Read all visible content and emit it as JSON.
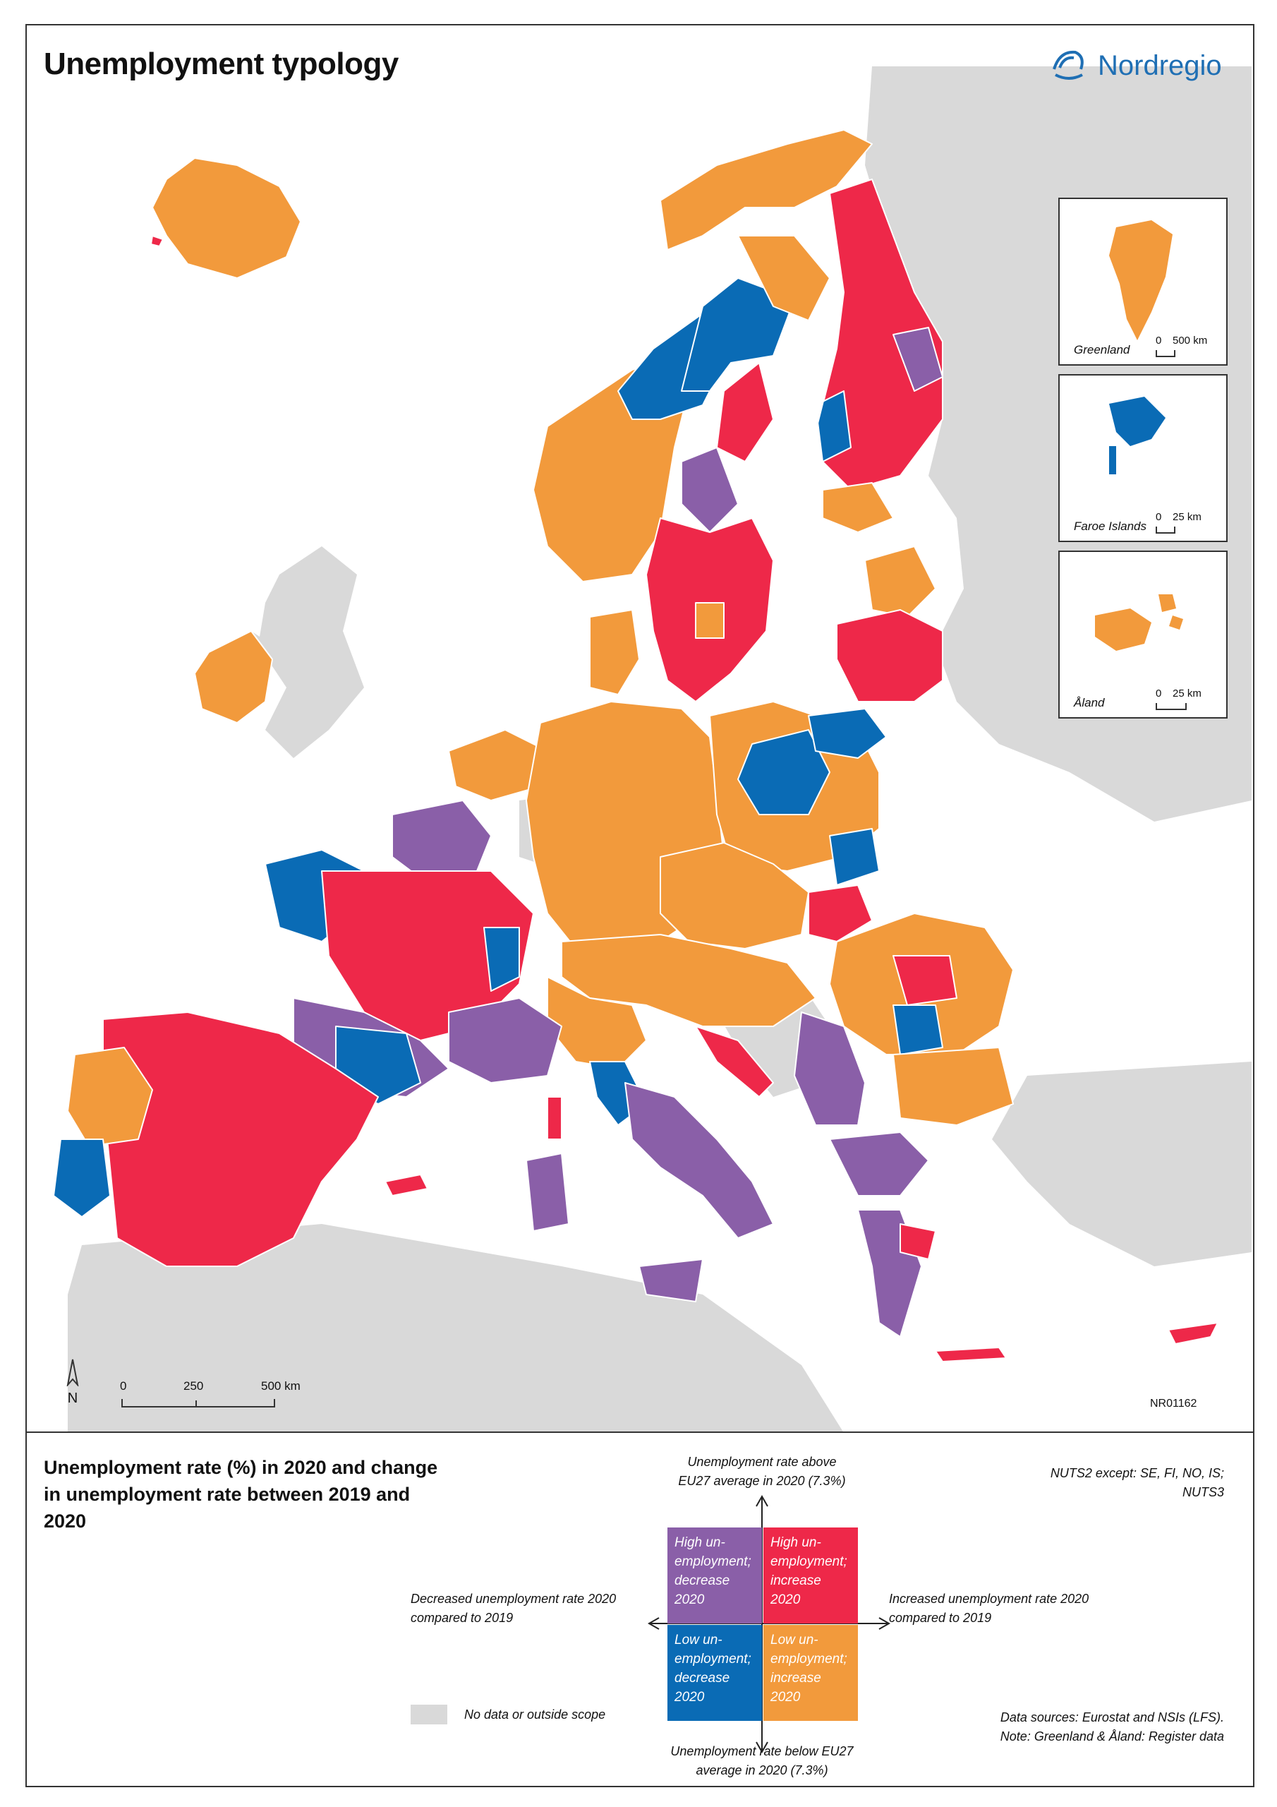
{
  "title": "Unemployment typology",
  "brand": "Nordregio",
  "map_code": "NR01162",
  "north_label": "N",
  "scale": {
    "ticks": [
      "0",
      "250",
      "500 km"
    ]
  },
  "insets": [
    {
      "label": "Greenland",
      "scale_zero": "0",
      "scale_end": "500 km"
    },
    {
      "label": "Faroe Islands",
      "scale_zero": "0",
      "scale_end": "25 km"
    },
    {
      "label": "Åland",
      "scale_zero": "0",
      "scale_end": "25 km"
    }
  ],
  "legend": {
    "title": "Unemployment rate (%) in 2020 and change in unemployment rate between 2019 and 2020",
    "axis_top": "Unemployment rate above EU27 average in 2020 (7.3%)",
    "axis_bottom": "Unemployment rate below EU27 average in 2020 (7.3%)",
    "axis_left": "Decreased unemployment rate 2020 compared to 2019",
    "axis_right": "Increased unemployment rate 2020 compared to 2019",
    "quadrants": {
      "high_decrease": "High un- employment; decrease 2020",
      "high_increase": "High un- employment; increase 2020",
      "low_decrease": "Low un- employment; decrease 2020",
      "low_increase": "Low un- employment; increase 2020"
    },
    "no_data": "No data or outside scope",
    "nuts_note": "NUTS2 except: SE, FI, NO, IS; NUTS3",
    "sources": "Data sources: Eurostat and NSIs (LFS). Note: Greenland & Åland: Register data"
  },
  "colors": {
    "high_decrease": "#8a5fa8",
    "high_increase": "#ee2849",
    "low_decrease": "#0a6bb5",
    "low_increase": "#f29a3c",
    "no_data": "#d9d9d9",
    "sea": "#ffffff"
  }
}
